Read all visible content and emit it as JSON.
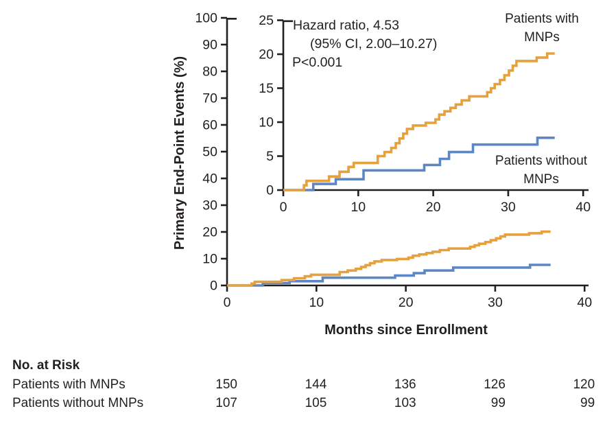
{
  "figure": {
    "y_axis_title": "Primary End-Point Events (%)",
    "x_axis_title": "Months since Enrollment",
    "annotation": {
      "line1": "Hazard ratio, 4.53",
      "line2": "(95% CI, 2.00–10.27)",
      "line3": "P<0.001"
    },
    "colors": {
      "with_mnps": "#E6A13C",
      "without_mnps": "#5D86C5",
      "axis": "#231F20",
      "text": "#231F20"
    }
  },
  "chart_data": {
    "type": "line",
    "style": "kaplan-meier-step-curves with zoomed inset",
    "title": "",
    "xlabel": "Months since Enrollment",
    "ylabel": "Primary End-Point Events (%)",
    "main_plot": {
      "xlim": [
        0,
        40
      ],
      "ylim": [
        0,
        100
      ],
      "x_ticks": [
        0,
        10,
        20,
        30,
        40
      ],
      "y_ticks": [
        0,
        10,
        20,
        30,
        40,
        50,
        60,
        70,
        80,
        90,
        100
      ],
      "grid": false
    },
    "inset_plot": {
      "xlim": [
        0,
        40
      ],
      "ylim": [
        0,
        25
      ],
      "x_ticks": [
        0,
        10,
        20,
        30,
        40
      ],
      "y_ticks": [
        0,
        5,
        10,
        15,
        20,
        25
      ],
      "grid": false
    },
    "annotation_text": "Hazard ratio, 4.53 (95% CI, 2.00–10.27) P<0.001",
    "series": [
      {
        "name": "Patients with MNPs",
        "label_lines": [
          "Patients with",
          "MNPs"
        ],
        "color": "#E6A13C",
        "end_month": 36.2,
        "final_percent": 20.1,
        "steps": [
          [
            2.75,
            0.7
          ],
          [
            3.1,
            1.35
          ],
          [
            6.1,
            2.0
          ],
          [
            7.5,
            2.7
          ],
          [
            8.7,
            3.4
          ],
          [
            9.4,
            4.0
          ],
          [
            12.6,
            5.0
          ],
          [
            13.5,
            5.6
          ],
          [
            14.4,
            6.2
          ],
          [
            15.0,
            6.9
          ],
          [
            15.5,
            7.6
          ],
          [
            16.0,
            8.3
          ],
          [
            16.5,
            9.0
          ],
          [
            17.3,
            9.5
          ],
          [
            19.0,
            9.9
          ],
          [
            20.3,
            10.4
          ],
          [
            20.8,
            11.1
          ],
          [
            21.5,
            11.6
          ],
          [
            22.3,
            12.1
          ],
          [
            23.0,
            12.6
          ],
          [
            23.8,
            13.2
          ],
          [
            24.8,
            13.8
          ],
          [
            27.2,
            14.4
          ],
          [
            27.7,
            15.0
          ],
          [
            28.2,
            15.6
          ],
          [
            28.9,
            16.2
          ],
          [
            29.5,
            16.9
          ],
          [
            30.1,
            17.6
          ],
          [
            30.6,
            18.3
          ],
          [
            31.1,
            19.0
          ],
          [
            33.8,
            19.5
          ],
          [
            35.2,
            20.1
          ]
        ]
      },
      {
        "name": "Patients without MNPs",
        "label_lines": [
          "Patients without",
          "MNPs"
        ],
        "color": "#5D86C5",
        "end_month": 36.2,
        "final_percent": 7.7,
        "steps": [
          [
            4.0,
            0.9
          ],
          [
            7.0,
            1.6
          ],
          [
            10.7,
            2.9
          ],
          [
            18.8,
            3.7
          ],
          [
            20.9,
            4.6
          ],
          [
            22.1,
            5.6
          ],
          [
            25.3,
            6.7
          ],
          [
            33.9,
            7.7
          ]
        ]
      }
    ]
  },
  "risk_table": {
    "title": "No. at Risk",
    "time_points": [
      0,
      10,
      20,
      30,
      40
    ],
    "rows": [
      {
        "label": "Patients with MNPs",
        "values": [
          "150",
          "144",
          "136",
          "126",
          "120"
        ]
      },
      {
        "label": "Patients without MNPs",
        "values": [
          "107",
          "105",
          "103",
          "99",
          "99"
        ]
      }
    ]
  }
}
